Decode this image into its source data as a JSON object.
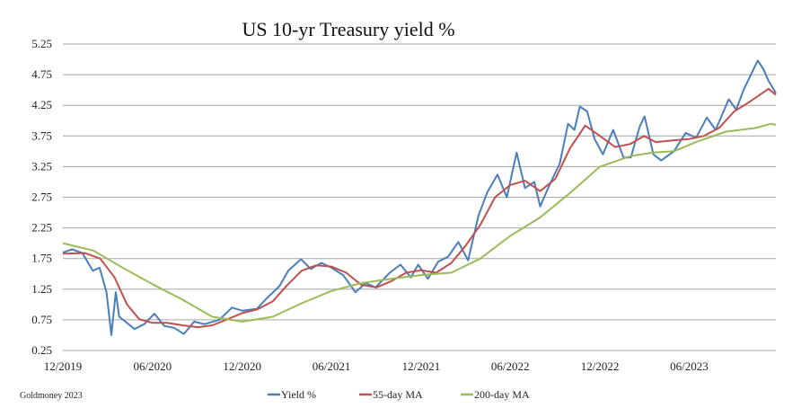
{
  "chart_data": {
    "type": "line",
    "title": "US 10-yr Treasury yield %",
    "source": "Goldmoney 2023",
    "xlabel": "",
    "ylabel": "",
    "ylim": [
      0.25,
      5.25
    ],
    "xlim": [
      "2019-12-01",
      "2023-11-25"
    ],
    "y_ticks": [
      "0.25",
      "0.75",
      "1.25",
      "1.75",
      "2.25",
      "2.75",
      "3.25",
      "3.75",
      "4.25",
      "4.75",
      "5.25"
    ],
    "x_ticks": [
      {
        "date": "2019-12-01",
        "label": "12/2019"
      },
      {
        "date": "2020-06-01",
        "label": "06/2020"
      },
      {
        "date": "2020-12-01",
        "label": "12/2020"
      },
      {
        "date": "2021-06-01",
        "label": "06/2021"
      },
      {
        "date": "2021-12-01",
        "label": "12/2021"
      },
      {
        "date": "2022-06-01",
        "label": "06/2022"
      },
      {
        "date": "2022-12-01",
        "label": "12/2022"
      },
      {
        "date": "2023-06-01",
        "label": "06/2023"
      }
    ],
    "grid": true,
    "legend": "bottom",
    "series": [
      {
        "name": "Yield %",
        "color": "#4a7ebb",
        "points": [
          [
            "2019-12-01",
            1.85
          ],
          [
            "2019-12-20",
            1.9
          ],
          [
            "2020-01-10",
            1.84
          ],
          [
            "2020-01-31",
            1.55
          ],
          [
            "2020-02-14",
            1.6
          ],
          [
            "2020-02-28",
            1.2
          ],
          [
            "2020-03-09",
            0.5
          ],
          [
            "2020-03-18",
            1.2
          ],
          [
            "2020-03-25",
            0.8
          ],
          [
            "2020-04-10",
            0.7
          ],
          [
            "2020-04-25",
            0.6
          ],
          [
            "2020-05-15",
            0.68
          ],
          [
            "2020-06-05",
            0.85
          ],
          [
            "2020-06-25",
            0.65
          ],
          [
            "2020-07-15",
            0.62
          ],
          [
            "2020-08-04",
            0.52
          ],
          [
            "2020-08-25",
            0.72
          ],
          [
            "2020-09-15",
            0.68
          ],
          [
            "2020-10-15",
            0.75
          ],
          [
            "2020-11-10",
            0.95
          ],
          [
            "2020-12-01",
            0.9
          ],
          [
            "2020-12-31",
            0.93
          ],
          [
            "2021-01-20",
            1.1
          ],
          [
            "2021-02-15",
            1.3
          ],
          [
            "2021-03-05",
            1.55
          ],
          [
            "2021-03-31",
            1.74
          ],
          [
            "2021-04-20",
            1.58
          ],
          [
            "2021-05-12",
            1.68
          ],
          [
            "2021-06-01",
            1.6
          ],
          [
            "2021-06-25",
            1.48
          ],
          [
            "2021-07-20",
            1.2
          ],
          [
            "2021-08-10",
            1.35
          ],
          [
            "2021-08-30",
            1.28
          ],
          [
            "2021-09-28",
            1.52
          ],
          [
            "2021-10-20",
            1.65
          ],
          [
            "2021-11-10",
            1.44
          ],
          [
            "2021-11-25",
            1.65
          ],
          [
            "2021-12-15",
            1.42
          ],
          [
            "2022-01-05",
            1.7
          ],
          [
            "2022-01-25",
            1.78
          ],
          [
            "2022-02-15",
            2.02
          ],
          [
            "2022-03-07",
            1.72
          ],
          [
            "2022-03-28",
            2.45
          ],
          [
            "2022-04-15",
            2.83
          ],
          [
            "2022-05-06",
            3.12
          ],
          [
            "2022-05-25",
            2.75
          ],
          [
            "2022-06-14",
            3.48
          ],
          [
            "2022-07-01",
            2.9
          ],
          [
            "2022-07-20",
            3.0
          ],
          [
            "2022-08-01",
            2.6
          ],
          [
            "2022-08-20",
            2.95
          ],
          [
            "2022-09-10",
            3.3
          ],
          [
            "2022-09-27",
            3.95
          ],
          [
            "2022-10-10",
            3.85
          ],
          [
            "2022-10-21",
            4.23
          ],
          [
            "2022-11-05",
            4.15
          ],
          [
            "2022-11-20",
            3.7
          ],
          [
            "2022-12-07",
            3.45
          ],
          [
            "2022-12-28",
            3.85
          ],
          [
            "2023-01-18",
            3.4
          ],
          [
            "2023-02-02",
            3.4
          ],
          [
            "2023-02-20",
            3.9
          ],
          [
            "2023-03-02",
            4.07
          ],
          [
            "2023-03-20",
            3.45
          ],
          [
            "2023-04-05",
            3.35
          ],
          [
            "2023-05-01",
            3.5
          ],
          [
            "2023-05-25",
            3.8
          ],
          [
            "2023-06-15",
            3.72
          ],
          [
            "2023-07-07",
            4.05
          ],
          [
            "2023-07-25",
            3.85
          ],
          [
            "2023-08-21",
            4.35
          ],
          [
            "2023-09-05",
            4.18
          ],
          [
            "2023-09-20",
            4.5
          ],
          [
            "2023-10-05",
            4.75
          ],
          [
            "2023-10-19",
            4.98
          ],
          [
            "2023-10-30",
            4.85
          ],
          [
            "2023-11-10",
            4.65
          ],
          [
            "2023-11-25",
            4.45
          ]
        ]
      },
      {
        "name": "55-day MA",
        "color": "#c0504d",
        "points": [
          [
            "2019-12-01",
            1.83
          ],
          [
            "2020-01-15",
            1.84
          ],
          [
            "2020-02-15",
            1.75
          ],
          [
            "2020-03-15",
            1.45
          ],
          [
            "2020-04-10",
            1.0
          ],
          [
            "2020-05-05",
            0.76
          ],
          [
            "2020-06-01",
            0.7
          ],
          [
            "2020-07-01",
            0.7
          ],
          [
            "2020-08-01",
            0.66
          ],
          [
            "2020-09-01",
            0.63
          ],
          [
            "2020-10-01",
            0.66
          ],
          [
            "2020-11-01",
            0.76
          ],
          [
            "2020-12-01",
            0.86
          ],
          [
            "2021-01-01",
            0.92
          ],
          [
            "2021-02-01",
            1.05
          ],
          [
            "2021-03-01",
            1.3
          ],
          [
            "2021-04-01",
            1.55
          ],
          [
            "2021-05-01",
            1.64
          ],
          [
            "2021-06-01",
            1.62
          ],
          [
            "2021-07-01",
            1.52
          ],
          [
            "2021-08-01",
            1.32
          ],
          [
            "2021-09-01",
            1.28
          ],
          [
            "2021-10-01",
            1.38
          ],
          [
            "2021-11-01",
            1.52
          ],
          [
            "2021-12-01",
            1.56
          ],
          [
            "2022-01-01",
            1.52
          ],
          [
            "2022-02-01",
            1.68
          ],
          [
            "2022-03-01",
            1.95
          ],
          [
            "2022-04-01",
            2.3
          ],
          [
            "2022-05-01",
            2.75
          ],
          [
            "2022-06-01",
            2.95
          ],
          [
            "2022-07-01",
            3.02
          ],
          [
            "2022-08-01",
            2.85
          ],
          [
            "2022-09-01",
            3.05
          ],
          [
            "2022-10-01",
            3.55
          ],
          [
            "2022-11-01",
            3.92
          ],
          [
            "2022-12-01",
            3.75
          ],
          [
            "2023-01-01",
            3.57
          ],
          [
            "2023-02-01",
            3.62
          ],
          [
            "2023-03-01",
            3.75
          ],
          [
            "2023-03-25",
            3.65
          ],
          [
            "2023-05-01",
            3.68
          ],
          [
            "2023-06-01",
            3.7
          ],
          [
            "2023-07-01",
            3.75
          ],
          [
            "2023-08-01",
            3.88
          ],
          [
            "2023-09-01",
            4.15
          ],
          [
            "2023-10-01",
            4.3
          ],
          [
            "2023-11-10",
            4.52
          ],
          [
            "2023-11-25",
            4.42
          ]
        ]
      },
      {
        "name": "200-day MA",
        "color": "#9bbb59",
        "points": [
          [
            "2019-12-01",
            2.0
          ],
          [
            "2020-02-01",
            1.88
          ],
          [
            "2020-04-01",
            1.6
          ],
          [
            "2020-06-01",
            1.33
          ],
          [
            "2020-08-01",
            1.08
          ],
          [
            "2020-10-01",
            0.8
          ],
          [
            "2020-12-01",
            0.72
          ],
          [
            "2021-02-01",
            0.8
          ],
          [
            "2021-04-01",
            1.02
          ],
          [
            "2021-06-01",
            1.22
          ],
          [
            "2021-08-01",
            1.35
          ],
          [
            "2021-10-01",
            1.42
          ],
          [
            "2021-12-01",
            1.48
          ],
          [
            "2022-02-01",
            1.52
          ],
          [
            "2022-04-01",
            1.75
          ],
          [
            "2022-06-01",
            2.12
          ],
          [
            "2022-08-01",
            2.42
          ],
          [
            "2022-10-01",
            2.82
          ],
          [
            "2022-12-01",
            3.25
          ],
          [
            "2023-02-01",
            3.42
          ],
          [
            "2023-03-20",
            3.48
          ],
          [
            "2023-05-01",
            3.5
          ],
          [
            "2023-06-15",
            3.65
          ],
          [
            "2023-08-15",
            3.82
          ],
          [
            "2023-10-15",
            3.88
          ],
          [
            "2023-11-15",
            3.95
          ],
          [
            "2023-11-25",
            3.93
          ]
        ]
      }
    ]
  }
}
